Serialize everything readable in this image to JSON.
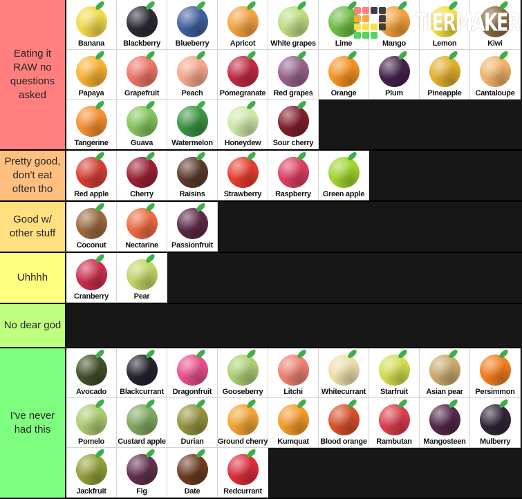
{
  "logo": {
    "text": "TIERMAKER",
    "text_color": "#ffffff",
    "icon_squares": [
      [
        "#ff8080",
        "#ff8080",
        "#3d3d44",
        "#3d3d44"
      ],
      [
        "#f8a83c",
        "#f8a83c",
        "transparent",
        "#3d3d44"
      ],
      [
        "#f8e04a",
        "#f8e04a",
        "#f8e04a",
        "#3d3d44"
      ],
      [
        "#57d45c",
        "#57d45c",
        "#57d45c",
        "transparent"
      ]
    ]
  },
  "tiers": [
    {
      "label": "Eating it RAW no questions asked",
      "color": "#ff7f7f",
      "items": [
        {
          "label": "Banana",
          "color": "#f3d94d"
        },
        {
          "label": "Blackberry",
          "color": "#2e2b36"
        },
        {
          "label": "Blueberry",
          "color": "#41619e"
        },
        {
          "label": "Apricot",
          "color": "#f5a342"
        },
        {
          "label": "White grapes",
          "color": "#bedc85"
        },
        {
          "label": "Lime",
          "color": "#6fbe44"
        },
        {
          "label": "Mango",
          "color": "#f2a03b"
        },
        {
          "label": "Lemon",
          "color": "#f6dd3e"
        },
        {
          "label": "Kiwi",
          "color": "#8c6d42"
        },
        {
          "label": "Papaya",
          "color": "#f7b233"
        },
        {
          "label": "Grapefruit",
          "color": "#ee7668"
        },
        {
          "label": "Peach",
          "color": "#f5a88e"
        },
        {
          "label": "Pomegranate",
          "color": "#c22b44"
        },
        {
          "label": "Red grapes",
          "color": "#96638b"
        },
        {
          "label": "Orange",
          "color": "#f79122"
        },
        {
          "label": "Plum",
          "color": "#45234e"
        },
        {
          "label": "Pineapple",
          "color": "#e0af2e"
        },
        {
          "label": "Cantaloupe",
          "color": "#f0b36a"
        },
        {
          "label": "Tangerine",
          "color": "#f59033"
        },
        {
          "label": "Guava",
          "color": "#86c45e"
        },
        {
          "label": "Watermelon",
          "color": "#3d9444"
        },
        {
          "label": "Honeydew",
          "color": "#cfe8a8"
        },
        {
          "label": "Sour cherry",
          "color": "#801f2d"
        }
      ]
    },
    {
      "label": "Pretty good, don't eat often tho",
      "color": "#ffbf7f",
      "items": [
        {
          "label": "Red apple",
          "color": "#d63f35"
        },
        {
          "label": "Cherry",
          "color": "#9c2133"
        },
        {
          "label": "Raisins",
          "color": "#5d3b2e"
        },
        {
          "label": "Strawberry",
          "color": "#e93c31"
        },
        {
          "label": "Raspberry",
          "color": "#dd3f63"
        },
        {
          "label": "Green apple",
          "color": "#a2d42f"
        }
      ]
    },
    {
      "label": "Good w/ other stuff",
      "color": "#ffdf7f",
      "items": [
        {
          "label": "Coconut",
          "color": "#9c6a3f"
        },
        {
          "label": "Nectarine",
          "color": "#ee6a42"
        },
        {
          "label": "Passionfruit",
          "color": "#5d2a47"
        }
      ]
    },
    {
      "label": "Uhhhh",
      "color": "#ffff7f",
      "items": [
        {
          "label": "Cranberry",
          "color": "#cb2f4d"
        },
        {
          "label": "Pear",
          "color": "#c3d468"
        }
      ]
    },
    {
      "label": "No dear god",
      "color": "#bfff7f",
      "items": []
    },
    {
      "label": "I've never had this",
      "color": "#7fff7f",
      "items": [
        {
          "label": "Avocado",
          "color": "#41512a"
        },
        {
          "label": "Blackcurrant",
          "color": "#26222e"
        },
        {
          "label": "Dragonfruit",
          "color": "#ea4f8d"
        },
        {
          "label": "Gooseberry",
          "color": "#accf74"
        },
        {
          "label": "Litchi",
          "color": "#ec8273"
        },
        {
          "label": "Whitecurrant",
          "color": "#ecdfad"
        },
        {
          "label": "Starfruit",
          "color": "#d3dc52"
        },
        {
          "label": "Asian pear",
          "color": "#c9aa6e"
        },
        {
          "label": "Persimmon",
          "color": "#f37d1f"
        },
        {
          "label": "Pomelo",
          "color": "#aecb72"
        },
        {
          "label": "Custard apple",
          "color": "#82a862"
        },
        {
          "label": "Durian",
          "color": "#96933f"
        },
        {
          "label": "Ground cherry",
          "color": "#f2a435"
        },
        {
          "label": "Kumquat",
          "color": "#f39a2a"
        },
        {
          "label": "Blood orange",
          "color": "#d8502c"
        },
        {
          "label": "Rambutan",
          "color": "#da3e4e"
        },
        {
          "label": "Mangosteen",
          "color": "#53284a"
        },
        {
          "label": "Mulberry",
          "color": "#2f2638"
        },
        {
          "label": "Jackfruit",
          "color": "#93a03c"
        },
        {
          "label": "Fig",
          "color": "#64304f"
        },
        {
          "label": "Date",
          "color": "#6e3d24"
        },
        {
          "label": "Redcurrant",
          "color": "#dd2e3c"
        }
      ]
    }
  ]
}
